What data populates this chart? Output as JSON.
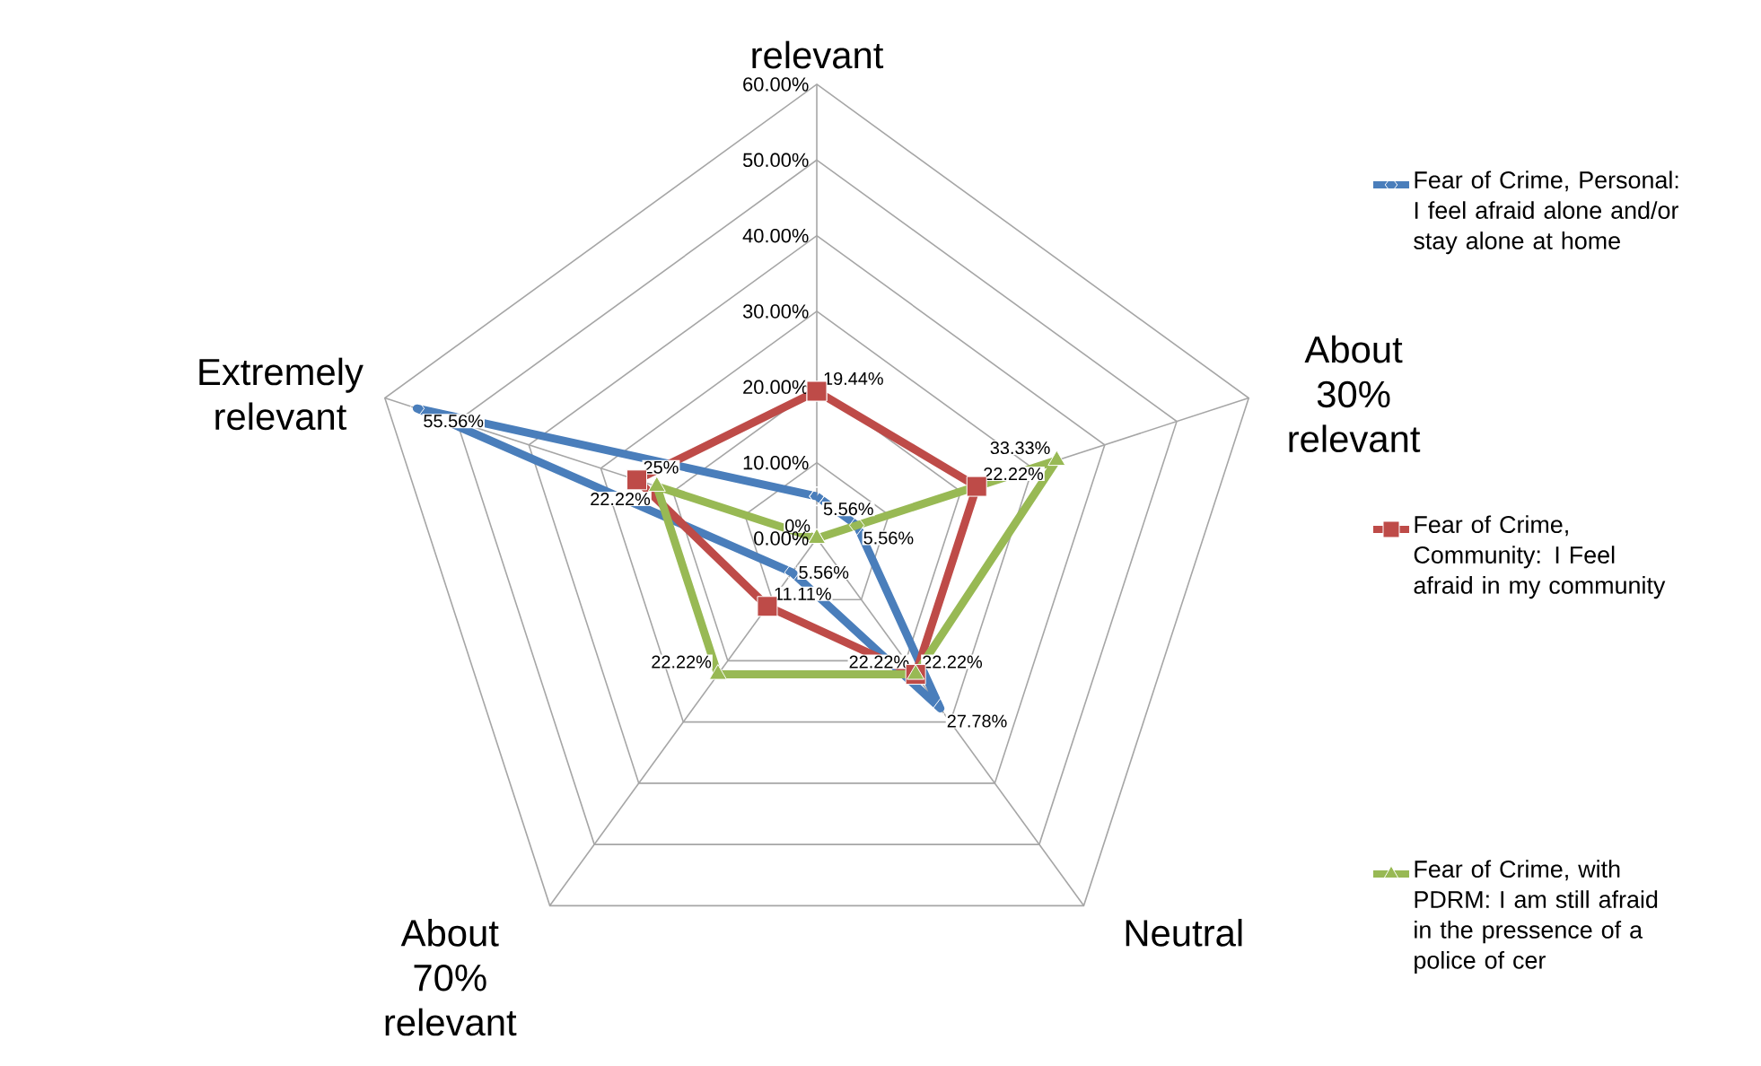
{
  "chart_data": {
    "type": "radar",
    "categories": [
      "relevant",
      "About 30% relevant",
      "Neutral",
      "About 70% relevant",
      "Extremely relevant"
    ],
    "ylim": [
      0,
      60
    ],
    "yticks": [
      {
        "value": 0,
        "label": "0.00%"
      },
      {
        "value": 10,
        "label": "10.00%"
      },
      {
        "value": 20,
        "label": "20.00%"
      },
      {
        "value": 30,
        "label": "30.00%"
      },
      {
        "value": 40,
        "label": "40.00%"
      },
      {
        "value": 50,
        "label": "50.00%"
      },
      {
        "value": 60,
        "label": "60.00%"
      }
    ],
    "grid": true,
    "legend": "right",
    "line_style": "solid",
    "series": [
      {
        "name": "Fear of Crime, Personal: I feel afraid alone and/or stay alone at home",
        "color": "#4a7ebb",
        "marker": "diamond",
        "values": [
          5.56,
          5.56,
          27.78,
          5.56,
          55.56
        ],
        "value_labels": [
          "5.56%",
          "5.56%",
          "27.78%",
          "5.56%",
          "55.56%"
        ]
      },
      {
        "name": "Fear of Crime, Community: I Feel afraid in my community",
        "color": "#be4b48",
        "marker": "square",
        "values": [
          19.44,
          22.22,
          22.22,
          11.11,
          25
        ],
        "value_labels": [
          "19.44%",
          "22.22%",
          "22.22%",
          "11.11%",
          "25%"
        ]
      },
      {
        "name": "Fear of Crime, with PDRM: I am still afraid in the pressence of a police of cer",
        "color": "#98b954",
        "marker": "triangle",
        "values": [
          0,
          33.33,
          22.22,
          22.22,
          22.22
        ],
        "value_labels": [
          "0%",
          "33.33%",
          "22.22%",
          "22.22%",
          "22.22%"
        ]
      }
    ]
  }
}
